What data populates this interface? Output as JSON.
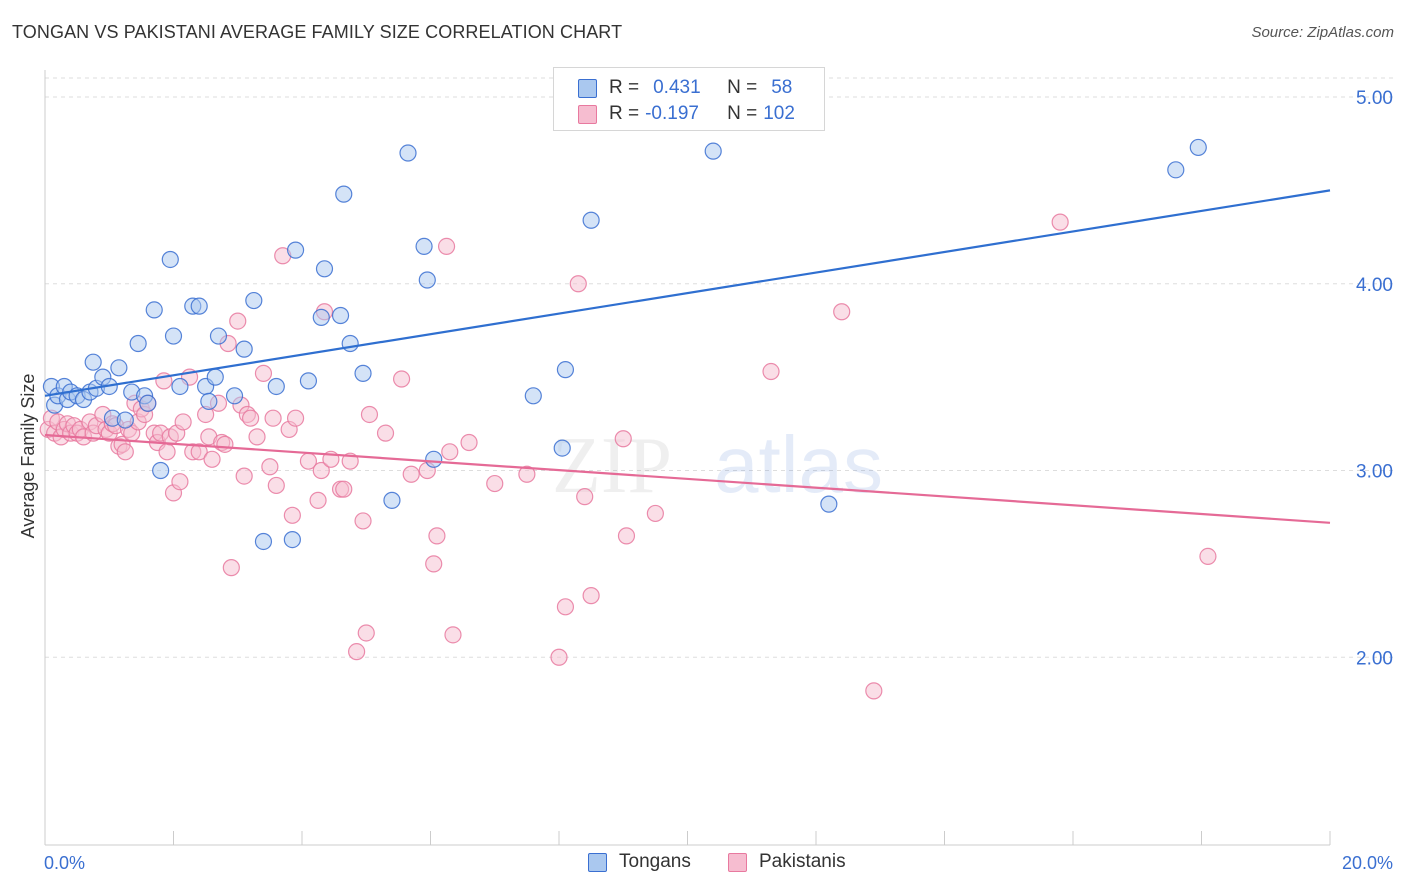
{
  "title": "TONGAN VS PAKISTANI AVERAGE FAMILY SIZE CORRELATION CHART",
  "source": "Source: ZipAtlas.com",
  "colors": {
    "blue": "#3a6fd1",
    "blue_fill": "#aac8ef",
    "blue_line": "#2f6fd0",
    "pink": "#e8799f",
    "pink_fill": "#f6bdd0",
    "pink_line": "#e56a96",
    "grid": "#dddddd",
    "axis": "#cccccc"
  },
  "legend": {
    "rows": [
      {
        "r_label": "R =",
        "r_value": "0.431",
        "n_label": "N =",
        "n_value": "58"
      },
      {
        "r_label": "R =",
        "r_value": "-0.197",
        "n_label": "N =",
        "n_value": "102"
      }
    ]
  },
  "bottom_legend": [
    "Tongans",
    "Pakistanis"
  ],
  "watermark": {
    "zip": "ZIP",
    "atlas": "atlas"
  },
  "chart_data": {
    "type": "scatter",
    "title": "TONGAN VS PAKISTANI AVERAGE FAMILY SIZE CORRELATION CHART",
    "xlabel": "",
    "ylabel": "Average Family Size",
    "xlim": [
      0,
      20
    ],
    "ylim": [
      1.0,
      5.15
    ],
    "x_tick_labels": [
      "0.0%",
      "20.0%"
    ],
    "y_ticks": [
      2.0,
      3.0,
      4.0,
      5.0
    ],
    "y_tick_labels": [
      "2.00",
      "3.00",
      "4.00",
      "5.00"
    ],
    "grid": "horizontal dashed",
    "legend_placement": "top-center",
    "series": [
      {
        "name": "Tongans",
        "color": "#3a6fd1",
        "r": 0.431,
        "n": 58,
        "trend": {
          "x": [
            0,
            20
          ],
          "y": [
            3.4,
            4.5
          ]
        },
        "points": [
          [
            0.1,
            3.45
          ],
          [
            0.15,
            3.35
          ],
          [
            0.2,
            3.4
          ],
          [
            0.3,
            3.45
          ],
          [
            0.35,
            3.38
          ],
          [
            0.4,
            3.42
          ],
          [
            0.5,
            3.4
          ],
          [
            0.6,
            3.38
          ],
          [
            0.7,
            3.42
          ],
          [
            0.75,
            3.58
          ],
          [
            0.8,
            3.44
          ],
          [
            0.9,
            3.5
          ],
          [
            1.0,
            3.45
          ],
          [
            1.05,
            3.28
          ],
          [
            1.15,
            3.55
          ],
          [
            1.25,
            3.27
          ],
          [
            1.35,
            3.42
          ],
          [
            1.45,
            3.68
          ],
          [
            1.55,
            3.4
          ],
          [
            1.6,
            3.36
          ],
          [
            1.7,
            3.86
          ],
          [
            1.8,
            3.0
          ],
          [
            1.95,
            4.13
          ],
          [
            2.0,
            3.72
          ],
          [
            2.1,
            3.45
          ],
          [
            2.3,
            3.88
          ],
          [
            2.4,
            3.88
          ],
          [
            2.5,
            3.45
          ],
          [
            2.55,
            3.37
          ],
          [
            2.65,
            3.5
          ],
          [
            2.7,
            3.72
          ],
          [
            2.95,
            3.4
          ],
          [
            3.1,
            3.65
          ],
          [
            3.25,
            3.91
          ],
          [
            3.4,
            2.62
          ],
          [
            3.6,
            3.45
          ],
          [
            3.85,
            2.63
          ],
          [
            3.9,
            4.18
          ],
          [
            4.1,
            3.48
          ],
          [
            4.3,
            3.82
          ],
          [
            4.35,
            4.08
          ],
          [
            4.6,
            3.83
          ],
          [
            4.65,
            4.48
          ],
          [
            4.75,
            3.68
          ],
          [
            4.95,
            3.52
          ],
          [
            5.4,
            2.84
          ],
          [
            5.65,
            4.7
          ],
          [
            5.9,
            4.2
          ],
          [
            5.95,
            4.02
          ],
          [
            6.05,
            3.06
          ],
          [
            7.6,
            3.4
          ],
          [
            8.05,
            3.12
          ],
          [
            8.1,
            3.54
          ],
          [
            8.5,
            4.34
          ],
          [
            10.4,
            4.71
          ],
          [
            12.2,
            2.82
          ],
          [
            17.6,
            4.61
          ],
          [
            17.95,
            4.73
          ]
        ]
      },
      {
        "name": "Pakistanis",
        "color": "#e8799f",
        "r": -0.197,
        "n": 102,
        "trend": {
          "x": [
            0,
            20
          ],
          "y": [
            3.19,
            2.72
          ]
        },
        "points": [
          [
            0.05,
            3.22
          ],
          [
            0.1,
            3.28
          ],
          [
            0.15,
            3.2
          ],
          [
            0.2,
            3.26
          ],
          [
            0.25,
            3.18
          ],
          [
            0.3,
            3.22
          ],
          [
            0.35,
            3.25
          ],
          [
            0.4,
            3.2
          ],
          [
            0.45,
            3.24
          ],
          [
            0.5,
            3.2
          ],
          [
            0.55,
            3.22
          ],
          [
            0.6,
            3.18
          ],
          [
            0.7,
            3.26
          ],
          [
            0.75,
            3.2
          ],
          [
            0.8,
            3.24
          ],
          [
            0.9,
            3.3
          ],
          [
            0.95,
            3.22
          ],
          [
            1.0,
            3.2
          ],
          [
            1.05,
            3.25
          ],
          [
            1.1,
            3.24
          ],
          [
            1.15,
            3.13
          ],
          [
            1.2,
            3.14
          ],
          [
            1.25,
            3.1
          ],
          [
            1.3,
            3.22
          ],
          [
            1.35,
            3.2
          ],
          [
            1.4,
            3.36
          ],
          [
            1.45,
            3.26
          ],
          [
            1.5,
            3.33
          ],
          [
            1.55,
            3.3
          ],
          [
            1.6,
            3.36
          ],
          [
            1.7,
            3.2
          ],
          [
            1.75,
            3.15
          ],
          [
            1.8,
            3.2
          ],
          [
            1.85,
            3.48
          ],
          [
            1.9,
            3.1
          ],
          [
            1.95,
            3.18
          ],
          [
            2.05,
            3.2
          ],
          [
            2.0,
            2.88
          ],
          [
            2.1,
            2.94
          ],
          [
            2.15,
            3.26
          ],
          [
            2.25,
            3.5
          ],
          [
            2.3,
            3.1
          ],
          [
            2.4,
            3.1
          ],
          [
            2.5,
            3.3
          ],
          [
            2.55,
            3.18
          ],
          [
            2.6,
            3.06
          ],
          [
            2.7,
            3.36
          ],
          [
            2.75,
            3.15
          ],
          [
            2.8,
            3.14
          ],
          [
            2.85,
            3.68
          ],
          [
            2.9,
            2.48
          ],
          [
            3.0,
            3.8
          ],
          [
            3.05,
            3.35
          ],
          [
            3.1,
            2.97
          ],
          [
            3.15,
            3.3
          ],
          [
            3.2,
            3.28
          ],
          [
            3.3,
            3.18
          ],
          [
            3.4,
            3.52
          ],
          [
            3.5,
            3.02
          ],
          [
            3.55,
            3.28
          ],
          [
            3.6,
            2.92
          ],
          [
            3.7,
            4.15
          ],
          [
            3.8,
            3.22
          ],
          [
            3.85,
            2.76
          ],
          [
            3.9,
            3.28
          ],
          [
            4.1,
            3.05
          ],
          [
            4.25,
            2.84
          ],
          [
            4.3,
            3.0
          ],
          [
            4.35,
            3.85
          ],
          [
            4.45,
            3.06
          ],
          [
            4.6,
            2.9
          ],
          [
            4.65,
            2.9
          ],
          [
            4.75,
            3.05
          ],
          [
            4.85,
            2.03
          ],
          [
            4.95,
            2.73
          ],
          [
            5.0,
            2.13
          ],
          [
            5.05,
            3.3
          ],
          [
            5.3,
            3.2
          ],
          [
            5.55,
            3.49
          ],
          [
            5.7,
            2.98
          ],
          [
            5.95,
            3.0
          ],
          [
            6.05,
            2.5
          ],
          [
            6.1,
            2.65
          ],
          [
            6.25,
            4.2
          ],
          [
            6.3,
            3.1
          ],
          [
            6.35,
            2.12
          ],
          [
            6.6,
            3.15
          ],
          [
            7.0,
            2.93
          ],
          [
            7.5,
            2.98
          ],
          [
            8.0,
            2.0
          ],
          [
            8.1,
            2.27
          ],
          [
            8.3,
            4.0
          ],
          [
            8.4,
            2.86
          ],
          [
            8.5,
            2.33
          ],
          [
            9.05,
            2.65
          ],
          [
            9.5,
            2.77
          ],
          [
            11.3,
            3.53
          ],
          [
            12.4,
            3.85
          ],
          [
            12.9,
            1.82
          ],
          [
            15.8,
            4.33
          ],
          [
            18.1,
            2.54
          ],
          [
            9.0,
            3.17
          ]
        ]
      }
    ]
  }
}
